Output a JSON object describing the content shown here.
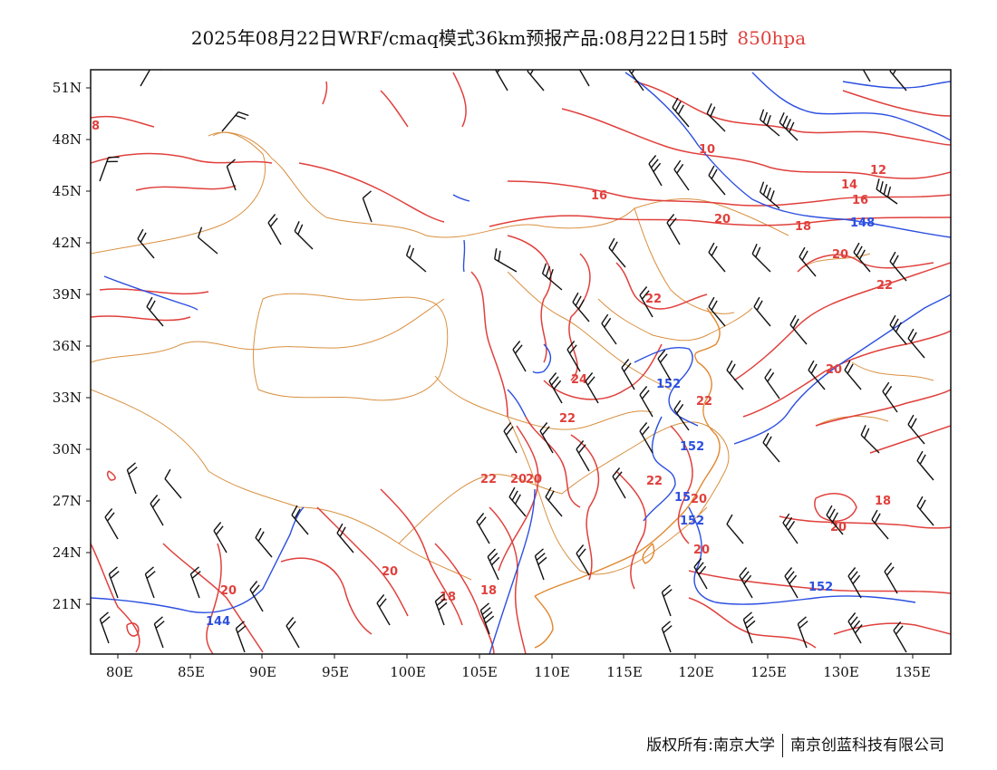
{
  "title": {
    "main": "2025年08月22日WRF/cmaq模式36km预报产品:08月22日15时",
    "level": "850hpa",
    "level_color": "#e0403c"
  },
  "axes": {
    "lat_labels": [
      "51N",
      "48N",
      "45N",
      "42N",
      "39N",
      "36N",
      "33N",
      "30N",
      "27N",
      "24N",
      "21N"
    ],
    "lon_labels": [
      "80E",
      "85E",
      "90E",
      "95E",
      "100E",
      "105E",
      "110E",
      "115E",
      "120E",
      "125E",
      "130E",
      "135E"
    ]
  },
  "contours": {
    "temperature_color": "#e0403c",
    "height_color": "#2b4fe0",
    "boundary_color": "#d99040",
    "wind_color": "#111111",
    "temperature_labels": [
      "8",
      "10",
      "12",
      "14",
      "16",
      "16",
      "18",
      "18",
      "18",
      "18",
      "20",
      "20",
      "20",
      "20",
      "20",
      "20",
      "20",
      "20",
      "20",
      "20",
      "22",
      "22",
      "22",
      "22",
      "22",
      "22",
      "24"
    ],
    "height_labels": [
      "148",
      "152",
      "152",
      "15",
      "152",
      "152",
      "144"
    ]
  },
  "footer": {
    "left": "版权所有:南京大学",
    "right": "南京创蓝科技有限公司"
  }
}
